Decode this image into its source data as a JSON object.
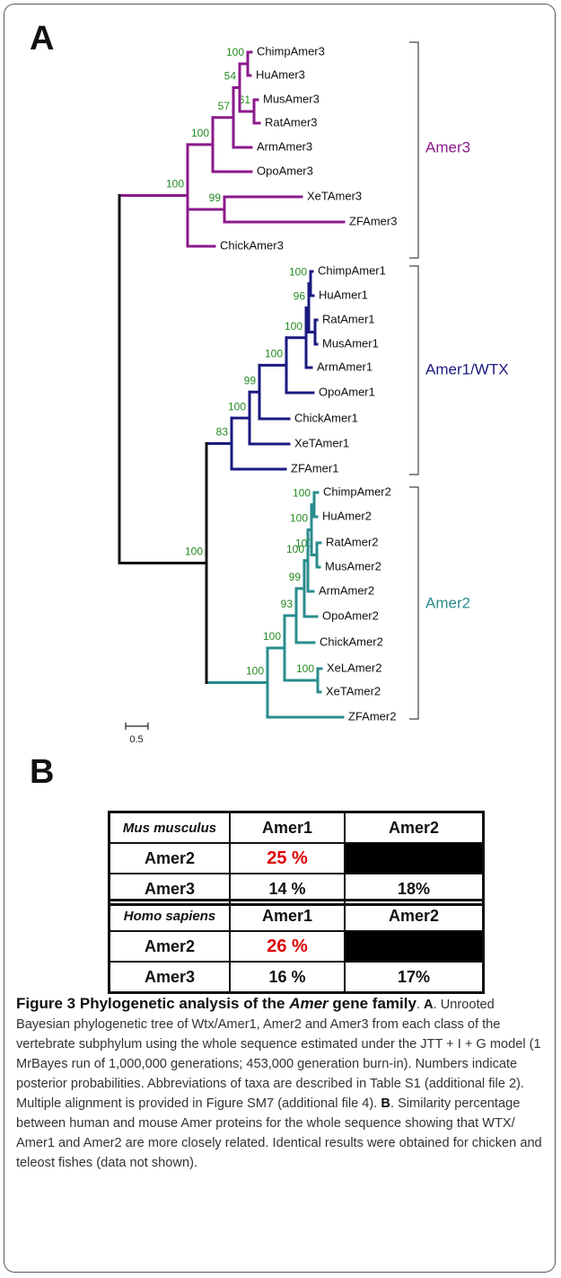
{
  "panel_a_label": "A",
  "panel_b_label": "B",
  "colors": {
    "amer3": "#8B1A8B",
    "amer1": "#1A1A80",
    "amer2": "#2A8C8C",
    "root": "#111111",
    "support": "#228B22",
    "highlight": "#E00000"
  },
  "tree": {
    "clades": [
      {
        "name": "Amer3",
        "color_key": "amer3"
      },
      {
        "name": "Amer1/WTX",
        "color_key": "amer1"
      },
      {
        "name": "Amer2",
        "color_key": "amer2"
      }
    ],
    "leaves": [
      "ChimpAmer3",
      "HuAmer3",
      "MusAmer3",
      "RatAmer3",
      "ArmAmer3",
      "OpoAmer3",
      "XeTAmer3",
      "ZFAmer3",
      "ChickAmer3",
      "ChimpAmer1",
      "HuAmer1",
      "RatAmer1",
      "MusAmer1",
      "ArmAmer1",
      "OpoAmer1",
      "ChickAmer1",
      "XeTAmer1",
      "ZFAmer1",
      "ChimpAmer2",
      "HuAmer2",
      "RatAmer2",
      "MusAmer2",
      "ArmAmer2",
      "OpoAmer2",
      "ChickAmer2",
      "XeLAmer2",
      "XeTAmer2",
      "ZFAmer2"
    ],
    "support_values": [
      "100",
      "57",
      "100",
      "100",
      "61",
      "54",
      "99",
      "100",
      "96",
      "100",
      "100",
      "99",
      "100",
      "83",
      "100",
      "100",
      "100",
      "100",
      "100",
      "99",
      "93",
      "100",
      "100",
      "100"
    ],
    "scale_label": "0.5"
  },
  "tables": [
    {
      "species": "Mus musculus",
      "col_headers": [
        "Amer1",
        "Amer2"
      ],
      "rows": [
        {
          "label": "Amer2",
          "values": [
            "25 %",
            ""
          ]
        },
        {
          "label": "Amer3",
          "values": [
            "14 %",
            "18%"
          ]
        }
      ]
    },
    {
      "species": "Homo sapiens",
      "col_headers": [
        "Amer1",
        "Amer2"
      ],
      "rows": [
        {
          "label": "Amer2",
          "values": [
            "26 %",
            ""
          ]
        },
        {
          "label": "Amer3",
          "values": [
            "16 %",
            "17%"
          ]
        }
      ]
    }
  ],
  "caption": {
    "figure_label": "Figure 3",
    "title_pre": "Phylogenetic analysis of the ",
    "title_gene": "Amer",
    "title_post": " gene family",
    "panel_a_ref": "A",
    "text_a": "Unrooted Bayesian phylogenetic tree of Wtx/Amer1, Amer2 and Amer3 from each class of the vertebrate subphylum using the whole sequence estimated under the JTT + I + G model (1 MrBayes run of 1,000,000 generations; 453,000 generation burn-in). Numbers indicate posterior probabilities. Abbreviations of taxa are described in Table S1 (additional file 2). Multiple alignment is provided in Figure SM7 (additional file 4).",
    "panel_b_ref": "B",
    "text_b": "Similarity percentage between human and mouse Amer proteins for the whole sequence showing that WTX/ Amer1 and Amer2 are more closely related. Identical results were obtained for chicken and teleost fishes (data not shown)."
  }
}
